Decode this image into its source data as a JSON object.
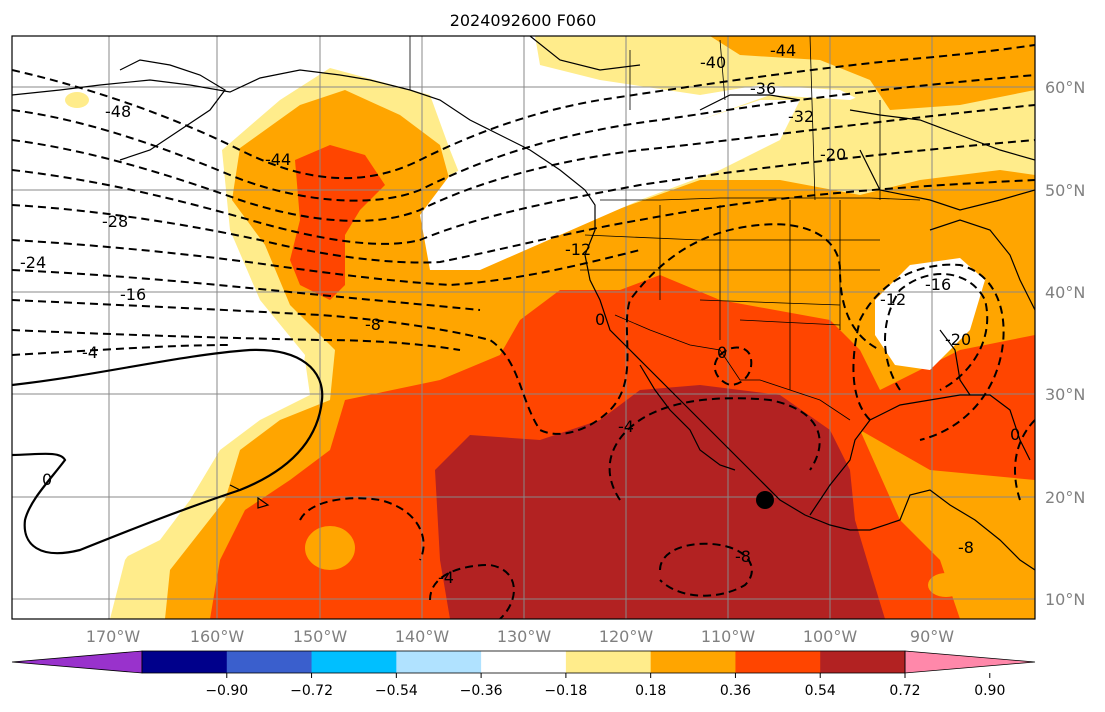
{
  "map": {
    "title": "2024092600 F060",
    "lon_labels": [
      "170°W",
      "160°W",
      "150°W",
      "140°W",
      "130°W",
      "120°W",
      "110°W",
      "100°W",
      "90°W"
    ],
    "lat_labels": [
      "60°N",
      "50°N",
      "40°N",
      "30°N",
      "20°N",
      "10°N"
    ],
    "contour_labels": [
      "-48",
      "-44",
      "-40",
      "-44",
      "-36",
      "-32",
      "-28",
      "-24",
      "-20",
      "-16",
      "-16",
      "-12",
      "-8",
      "-4",
      "0",
      "0",
      "0",
      "-4",
      "-4",
      "-8",
      "-12",
      "-20",
      "-8",
      "0"
    ],
    "colorbar": {
      "colors": [
        "#9932cc",
        "#00008b",
        "#3a5fcd",
        "#00bfff",
        "#b0e2ff",
        "#ffffff",
        "#ffec8b",
        "#ffa500",
        "#ff4500",
        "#b22222",
        "#ff88aa"
      ],
      "tick_labels": [
        "−0.90",
        "−0.72",
        "−0.54",
        "−0.36",
        "−0.18",
        "0.18",
        "0.36",
        "0.54",
        "0.72",
        "0.90"
      ]
    },
    "marker": "filled-circle"
  }
}
